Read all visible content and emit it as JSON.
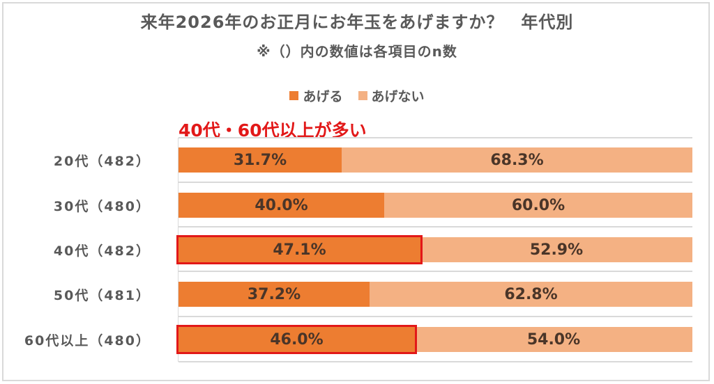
{
  "chart_data": {
    "type": "bar",
    "orientation": "horizontal",
    "stacked": "100%",
    "title": "来年2026年のお正月にお年玉をあげますか？　年代別",
    "subtitle": "※（）内の数値は各項目のn数",
    "annotation": "40代・60代以上が多い",
    "categories": [
      "20代（482）",
      "30代（480）",
      "40代（482）",
      "50代（481）",
      "60代以上（480）"
    ],
    "n": [
      482,
      480,
      482,
      481,
      480
    ],
    "series": [
      {
        "name": "あげる",
        "color": "#ed7d31",
        "values": [
          31.7,
          40.0,
          47.1,
          37.2,
          46.0
        ],
        "labels": [
          "31.7%",
          "40.0%",
          "47.1%",
          "37.2%",
          "46.0%"
        ]
      },
      {
        "name": "あげない",
        "color": "#f4b183",
        "values": [
          68.3,
          60.0,
          52.9,
          62.8,
          54.0
        ],
        "labels": [
          "68.3%",
          "60.0%",
          "52.9%",
          "62.8%",
          "54.0%"
        ]
      }
    ],
    "highlighted_categories": [
      "40代（482）",
      "60代以上（480）"
    ],
    "highlight_color": "#e21818",
    "xlim": [
      0,
      100
    ],
    "grid": true,
    "legend_position": "top"
  },
  "legend": {
    "items": [
      {
        "label": "あげる",
        "color": "#ed7d31"
      },
      {
        "label": "あげない",
        "color": "#f4b183"
      }
    ]
  }
}
